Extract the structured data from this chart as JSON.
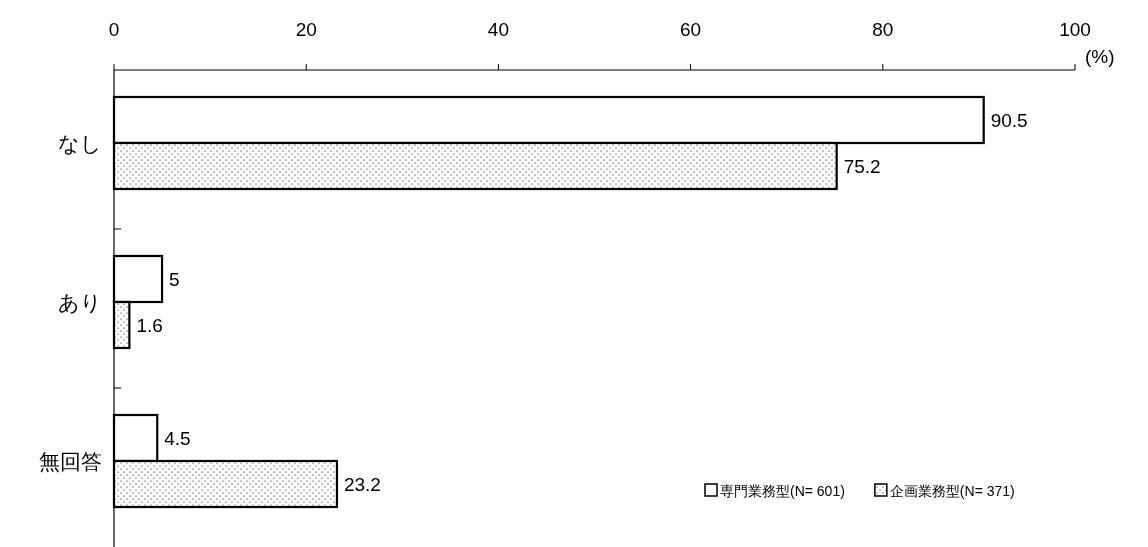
{
  "chart_data": {
    "type": "bar",
    "orientation": "horizontal",
    "categories": [
      "なし",
      "あり",
      "無回答"
    ],
    "series": [
      {
        "name": "専門業務型(N= 601)",
        "color": "#ffffff",
        "values": [
          90.5,
          5,
          4.5
        ]
      },
      {
        "name": "企画業務型(N= 371)",
        "color": "#000000",
        "values": [
          75.2,
          1.6,
          23.2
        ]
      }
    ],
    "xlabel": "(%)",
    "xlim": [
      0,
      100
    ],
    "xticks": [
      0,
      20,
      40,
      60,
      80,
      100
    ],
    "data_labels": true,
    "grid": false,
    "legend": "bottom right"
  }
}
